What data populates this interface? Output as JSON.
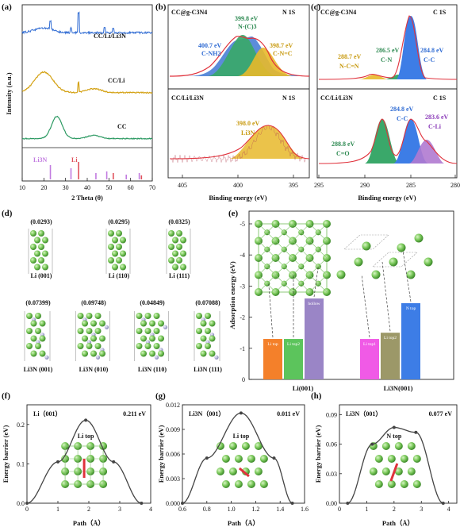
{
  "panel_a": {
    "letter": "(a)",
    "ylabel": "Intensity (a.u.)",
    "xlabel": "2 Theta (θ)",
    "xticks": [
      "10",
      "20",
      "30",
      "40",
      "50",
      "60",
      "70"
    ],
    "trace_labels": [
      "CC/Li/Li3N",
      "CC/Li",
      "CC"
    ],
    "ref_labels": [
      "Li3N",
      "Li"
    ],
    "colors": {
      "cclin": "#2f6bd3",
      "ccli": "#d4a215",
      "cc": "#2d9a63",
      "li3n": "#c27be0",
      "li": "#e0505a"
    }
  },
  "panel_b": {
    "letter": "(b)",
    "top_sample": "CC@g-C3N4",
    "bottom_sample": "CC/Li/Li3N",
    "element": "N 1S",
    "top_peaks": [
      {
        "energy": "399.8 eV",
        "species": "N-(C)3"
      },
      {
        "energy": "400.7 eV",
        "species": "C-NH2"
      },
      {
        "energy": "398.7 eV",
        "species": "C-N=C"
      }
    ],
    "bottom_peak": {
      "energy": "398.0 eV",
      "species": "Li3N"
    },
    "xticks": [
      "405",
      "400",
      "395"
    ],
    "xlabel": "Binding energy (eV)"
  },
  "panel_c": {
    "letter": "(c)",
    "top_sample": "CC@g-C3N4",
    "bottom_sample": "CC/Li/Li3N",
    "element": "C 1S",
    "top_peaks": [
      {
        "energy": "288.7 eV",
        "species": "N-C=N"
      },
      {
        "energy": "286.5 eV",
        "species": "C-N"
      },
      {
        "energy": "284.8 eV",
        "species": "C-C"
      }
    ],
    "bottom_peaks": [
      {
        "energy": "284.8 eV",
        "species": "C-C"
      },
      {
        "energy": "283.6 eV",
        "species": "C-Li"
      },
      {
        "energy": "288.8 eV",
        "species": "C=O"
      }
    ],
    "xticks": [
      "295",
      "290",
      "285",
      "280"
    ],
    "xlabel": "Binding energy (eV)"
  },
  "panel_d": {
    "letter": "(d)",
    "li_values": [
      "(0.0293)",
      "(0.0295)",
      "(0.0325)"
    ],
    "li_labels": [
      "Li (001)",
      "Li (110)",
      "Li (111)"
    ],
    "li3n_values": [
      "(0.07399)",
      "(0.09748)",
      "(0.04849)",
      "(0.07088)"
    ],
    "li3n_labels": [
      "Li3N (001)",
      "Li3N (010)",
      "Li3N (110)",
      "Li3N (111)"
    ]
  },
  "panel_e": {
    "letter": "(e)",
    "ylabel": "Adsorption energy (eV)",
    "yticks": [
      "-5",
      "-4",
      "-3",
      "-2",
      "-1",
      "0"
    ],
    "groups": [
      "Li(001)",
      "Li3N(001)"
    ],
    "bar_labels": [
      "Li top",
      "Li top2",
      "hollow",
      "Li top1",
      "Li top2",
      "N top"
    ]
  },
  "panel_f": {
    "letter": "(f)",
    "title": "Li（001）",
    "value": "0.211 eV",
    "site": "Li top",
    "ylabel": "Energy barrier (eV)",
    "xlabel": "Path（Å）",
    "xticks": [
      "0",
      "1",
      "2",
      "3",
      "4"
    ],
    "yticks": [
      "0.0",
      "0.1",
      "0.2"
    ]
  },
  "panel_g": {
    "letter": "(g)",
    "title": "Li3N（001）",
    "value": "0.011 eV",
    "site": "Li top",
    "ylabel": "Energy barrier (eV)",
    "xlabel": "Path（Å）",
    "xticks": [
      "0.6",
      "0.8",
      "1.0",
      "1.2",
      "1.4",
      "1.6"
    ],
    "yticks": [
      "0.000",
      "0.003",
      "0.006",
      "0.009",
      "0.012"
    ]
  },
  "panel_h": {
    "letter": "(h)",
    "title": "Li3N（001）",
    "value": "0.077 eV",
    "site": "N top",
    "ylabel": "Energy barrier (eV)",
    "xlabel": "Path（Å）",
    "xticks": [
      "0",
      "1",
      "2",
      "3",
      "4"
    ],
    "yticks": [
      "0.00",
      "0.03",
      "0.06",
      "0.09"
    ]
  },
  "chart_data": [
    {
      "type": "bar",
      "categories": [
        "Li top",
        "Li top2",
        "hollow",
        "Li top1",
        "Li top2",
        "N top"
      ],
      "groups": [
        "Li(001)",
        "Li(001)",
        "Li(001)",
        "Li3N(001)",
        "Li3N(001)",
        "Li3N(001)"
      ],
      "values": [
        -1.3,
        -1.3,
        -2.6,
        -1.3,
        -1.5,
        -2.45
      ],
      "colors": [
        "#f4802a",
        "#5cc45c",
        "#9a85c6",
        "#f05ae6",
        "#9c9868",
        "#3d7de6"
      ],
      "ylabel": "Adsorption energy (eV)",
      "ylim": [
        -5,
        0
      ]
    },
    {
      "type": "line",
      "x": [
        0,
        1.0,
        1.9,
        2.8,
        3.7
      ],
      "y": [
        0.0,
        0.105,
        0.211,
        0.105,
        0.0
      ],
      "xlabel": "Path（Å）",
      "ylabel": "Energy barrier (eV)",
      "xlim": [
        0,
        4
      ],
      "ylim": [
        0,
        0.25
      ]
    },
    {
      "type": "line",
      "x": [
        0.6,
        0.8,
        1.08,
        1.35,
        1.5
      ],
      "y": [
        0.0,
        0.0055,
        0.011,
        0.0055,
        0.0
      ],
      "xlabel": "Path（Å）",
      "ylabel": "Energy barrier (eV)",
      "xlim": [
        0.6,
        1.6
      ],
      "ylim": [
        0,
        0.012
      ]
    },
    {
      "type": "line",
      "x": [
        0.3,
        1.2,
        2.0,
        2.8,
        3.8
      ],
      "y": [
        0.0,
        0.06,
        0.077,
        0.072,
        0.0
      ],
      "xlabel": "Path（Å）",
      "ylabel": "Energy barrier (eV)",
      "xlim": [
        0,
        4.3
      ],
      "ylim": [
        0,
        0.1
      ]
    }
  ]
}
